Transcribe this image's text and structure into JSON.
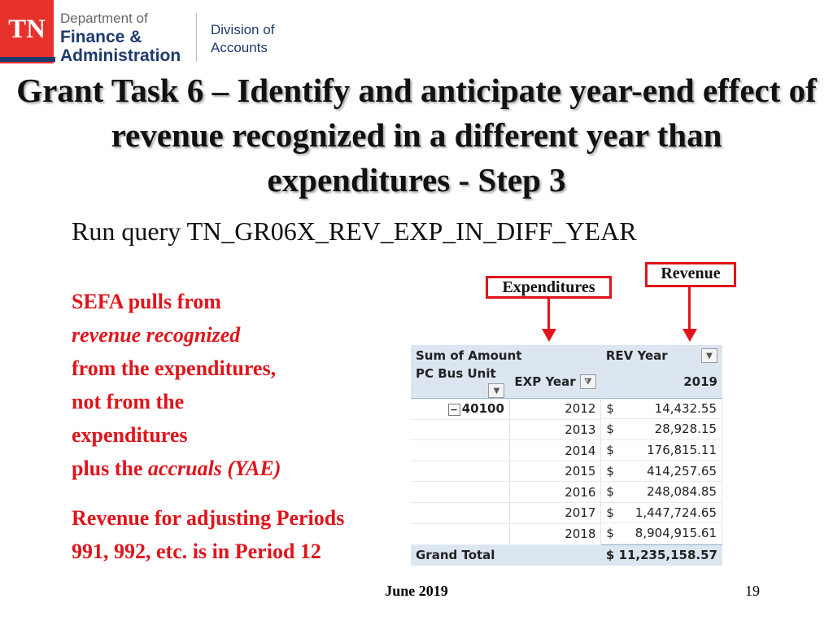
{
  "logo": {
    "mark": "TN",
    "line1": "Department of",
    "line2": "Finance &",
    "line3": "Administration",
    "division1": "Division of",
    "division2": "Accounts"
  },
  "title": "Grant Task 6 – Identify and anticipate year-end effect of revenue recognized in a different year than expenditures - Step 3",
  "query": "Run query TN_GR06X_REV_EXP_IN_DIFF_YEAR",
  "notes": {
    "l1": "SEFA pulls from",
    "l2": "revenue recognized",
    "l3": "from the expenditures,",
    "l4": "not from the",
    "l5": "expenditures",
    "l6a": "plus the ",
    "l6b": "accruals (YAE)",
    "l7": "Revenue for adjusting Periods",
    "l8": "991, 992, etc. is in Period 12"
  },
  "callouts": {
    "expenditures": "Expenditures",
    "revenue": "Revenue"
  },
  "pivot": {
    "sum_label": "Sum of Amount",
    "rev_year_label": "REV Year",
    "bus_unit_label": "PC Bus Unit",
    "exp_year_label": "EXP Year",
    "rev_year_value": "2019",
    "bus_unit": "40100",
    "rows": [
      {
        "year": "2012",
        "amount": "14,432.55"
      },
      {
        "year": "2013",
        "amount": "28,928.15"
      },
      {
        "year": "2014",
        "amount": "176,815.11"
      },
      {
        "year": "2015",
        "amount": "414,257.65"
      },
      {
        "year": "2016",
        "amount": "248,084.85"
      },
      {
        "year": "2017",
        "amount": "1,447,724.65"
      },
      {
        "year": "2018",
        "amount": "8,904,915.61"
      }
    ],
    "currency": "$",
    "grand_total_label": "Grand Total",
    "grand_total": "$ 11,235,158.57"
  },
  "footer": {
    "date": "June 2019",
    "page": "19"
  }
}
